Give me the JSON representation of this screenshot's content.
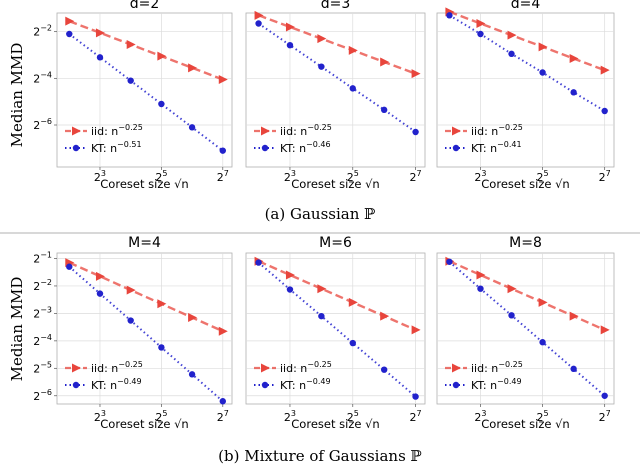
{
  "figure": {
    "ylabel_top": "Median MMD",
    "ylabel_bottom": "Median MMD",
    "caption_top": "(a) Gaussian ℙ",
    "caption_bottom": "(b) Mixture of Gaussians ℙ"
  },
  "colors": {
    "iid": "#e8453c",
    "kt": "#2222cc",
    "grid": "#dcdcdc",
    "frame": "#b0b0b0"
  },
  "chart_data": [
    {
      "type": "line",
      "title": "d=2",
      "xlabel": "Coreset size √n",
      "ylabel": "Median MMD",
      "xscale": "log2",
      "yscale": "log2",
      "xlim_log2": [
        1.6,
        7.3
      ],
      "ylim_log2": [
        -7.8,
        -1.2
      ],
      "xticks_log2": [
        3,
        5,
        7
      ],
      "yticks_log2": [
        -2,
        -4,
        -6
      ],
      "grid": true,
      "legend": "lower-left",
      "x_log2": [
        2,
        3,
        4,
        5,
        6,
        7
      ],
      "series": [
        {
          "key": "iid",
          "name": "iid: n",
          "exp": "−0.25",
          "y_log2": [
            -1.55,
            -2.05,
            -2.55,
            -3.05,
            -3.55,
            -4.05
          ]
        },
        {
          "key": "kt",
          "name": "KT: n",
          "exp": "−0.51",
          "y_log2": [
            -2.1,
            -3.1,
            -4.1,
            -5.1,
            -6.1,
            -7.1
          ]
        }
      ]
    },
    {
      "type": "line",
      "title": "d=3",
      "xlabel": "Coreset size √n",
      "ylabel": "Median MMD",
      "xscale": "log2",
      "yscale": "log2",
      "xlim_log2": [
        1.6,
        7.3
      ],
      "ylim_log2": [
        -7.8,
        -1.2
      ],
      "xticks_log2": [
        3,
        5,
        7
      ],
      "yticks_log2": [
        -2,
        -4,
        -6
      ],
      "grid": true,
      "legend": "lower-left",
      "x_log2": [
        2,
        3,
        4,
        5,
        6,
        7
      ],
      "series": [
        {
          "key": "iid",
          "name": "iid: n",
          "exp": "−0.25",
          "y_log2": [
            -1.3,
            -1.8,
            -2.3,
            -2.8,
            -3.3,
            -3.8
          ]
        },
        {
          "key": "kt",
          "name": "KT: n",
          "exp": "−0.46",
          "y_log2": [
            -1.65,
            -2.58,
            -3.5,
            -4.43,
            -5.35,
            -6.3
          ]
        }
      ]
    },
    {
      "type": "line",
      "title": "d=4",
      "xlabel": "Coreset size √n",
      "ylabel": "Median MMD",
      "xscale": "log2",
      "yscale": "log2",
      "xlim_log2": [
        1.6,
        7.3
      ],
      "ylim_log2": [
        -7.8,
        -1.2
      ],
      "xticks_log2": [
        3,
        5,
        7
      ],
      "yticks_log2": [
        -2,
        -4,
        -6
      ],
      "grid": true,
      "legend": "lower-left",
      "x_log2": [
        2,
        3,
        4,
        5,
        6,
        7
      ],
      "series": [
        {
          "key": "iid",
          "name": "iid: n",
          "exp": "−0.25",
          "y_log2": [
            -1.15,
            -1.65,
            -2.15,
            -2.65,
            -3.15,
            -3.65
          ]
        },
        {
          "key": "kt",
          "name": "KT: n",
          "exp": "−0.41",
          "y_log2": [
            -1.3,
            -2.1,
            -2.95,
            -3.75,
            -4.6,
            -5.4
          ]
        }
      ]
    },
    {
      "type": "line",
      "title": "M=4",
      "xlabel": "Coreset size √n",
      "ylabel": "Median MMD",
      "xscale": "log2",
      "yscale": "log2",
      "xlim_log2": [
        1.6,
        7.3
      ],
      "ylim_log2": [
        -6.3,
        -0.8
      ],
      "xticks_log2": [
        3,
        5,
        7
      ],
      "yticks_log2": [
        -1,
        -2,
        -3,
        -4,
        -5,
        -6
      ],
      "grid": true,
      "legend": "lower-left",
      "x_log2": [
        2,
        3,
        4,
        5,
        6,
        7
      ],
      "series": [
        {
          "key": "iid",
          "name": "iid: n",
          "exp": "−0.25",
          "y_log2": [
            -1.15,
            -1.65,
            -2.15,
            -2.65,
            -3.15,
            -3.65
          ]
        },
        {
          "key": "kt",
          "name": "KT: n",
          "exp": "−0.49",
          "y_log2": [
            -1.3,
            -2.28,
            -3.26,
            -4.24,
            -5.22,
            -6.2
          ]
        }
      ]
    },
    {
      "type": "line",
      "title": "M=6",
      "xlabel": "Coreset size √n",
      "ylabel": "Median MMD",
      "xscale": "log2",
      "yscale": "log2",
      "xlim_log2": [
        1.6,
        7.3
      ],
      "ylim_log2": [
        -6.3,
        -0.8
      ],
      "xticks_log2": [
        3,
        5,
        7
      ],
      "yticks_log2": [
        -1,
        -2,
        -3,
        -4,
        -5,
        -6
      ],
      "grid": true,
      "legend": "lower-left",
      "x_log2": [
        2,
        3,
        4,
        5,
        6,
        7
      ],
      "series": [
        {
          "key": "iid",
          "name": "iid: n",
          "exp": "−0.25",
          "y_log2": [
            -1.1,
            -1.6,
            -2.1,
            -2.6,
            -3.1,
            -3.6
          ]
        },
        {
          "key": "kt",
          "name": "KT: n",
          "exp": "−0.49",
          "y_log2": [
            -1.15,
            -2.13,
            -3.1,
            -4.08,
            -5.05,
            -6.03
          ]
        }
      ]
    },
    {
      "type": "line",
      "title": "M=8",
      "xlabel": "Coreset size √n",
      "ylabel": "Median MMD",
      "xscale": "log2",
      "yscale": "log2",
      "xlim_log2": [
        1.6,
        7.3
      ],
      "ylim_log2": [
        -6.3,
        -0.8
      ],
      "xticks_log2": [
        3,
        5,
        7
      ],
      "yticks_log2": [
        -1,
        -2,
        -3,
        -4,
        -5,
        -6
      ],
      "grid": true,
      "legend": "lower-left",
      "x_log2": [
        2,
        3,
        4,
        5,
        6,
        7
      ],
      "series": [
        {
          "key": "iid",
          "name": "iid: n",
          "exp": "−0.25",
          "y_log2": [
            -1.1,
            -1.6,
            -2.1,
            -2.6,
            -3.1,
            -3.6
          ]
        },
        {
          "key": "kt",
          "name": "KT: n",
          "exp": "−0.49",
          "y_log2": [
            -1.12,
            -2.1,
            -3.07,
            -4.05,
            -5.02,
            -6.0
          ]
        }
      ]
    }
  ]
}
